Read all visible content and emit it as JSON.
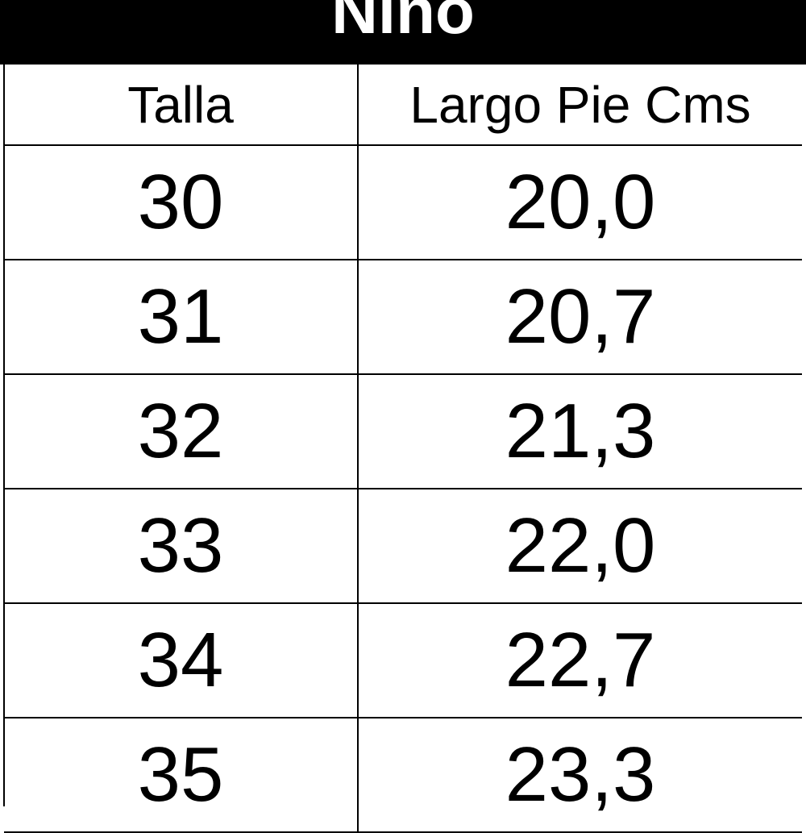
{
  "title": "Niño",
  "columns": [
    "Talla",
    "Largo Pie Cms"
  ],
  "rows": [
    [
      "30",
      "20,0"
    ],
    [
      "31",
      "20,7"
    ],
    [
      "32",
      "21,3"
    ],
    [
      "33",
      "22,0"
    ],
    [
      "34",
      "22,7"
    ],
    [
      "35",
      "23,3"
    ]
  ]
}
